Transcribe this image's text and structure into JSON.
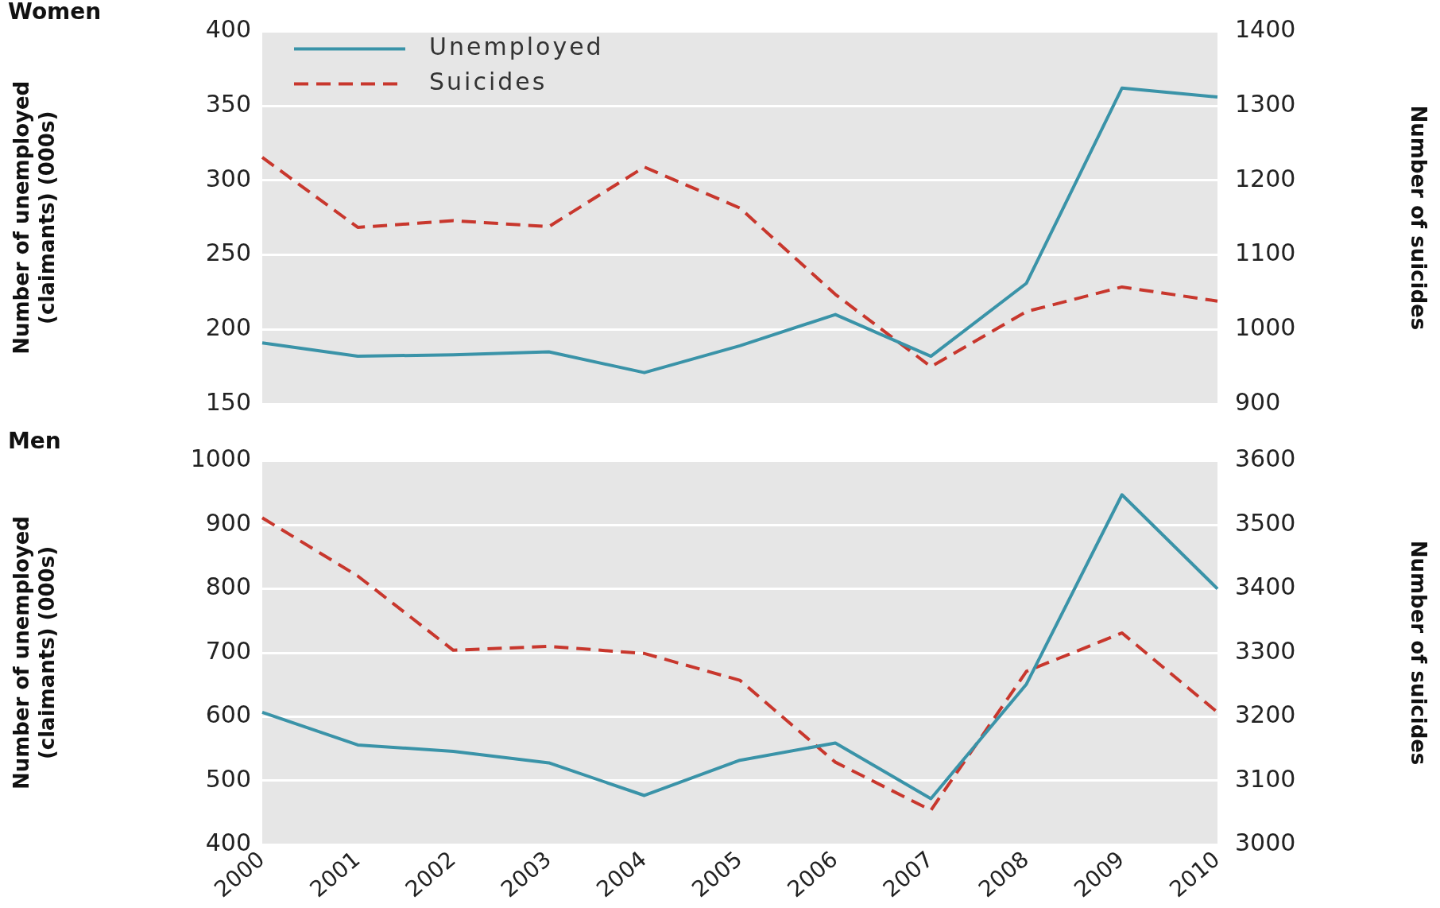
{
  "chart_data": [
    {
      "type": "line",
      "title": "Women",
      "ylabel": "Number of unemployed\n(claimants) (000s)",
      "y2label": "Number of suicides",
      "categories": [
        "2000",
        "2001",
        "2002",
        "2003",
        "2004",
        "2005",
        "2006",
        "2007",
        "2008",
        "2009",
        "2010"
      ],
      "series": [
        {
          "name": "Unemployed",
          "color": "#3a93a8",
          "line_style": "solid",
          "values": [
            191,
            182,
            183,
            185,
            171,
            189,
            210,
            182,
            231,
            362,
            356
          ]
        },
        {
          "name": "Suicides",
          "color": "#c8372d",
          "line_style": "dashed",
          "axis": "y2",
          "values": [
            1231,
            1137,
            1146,
            1138,
            1218,
            1163,
            1047,
            950,
            1024,
            1057,
            1038
          ]
        }
      ],
      "ylim": [
        150,
        400
      ],
      "yticks": [
        150,
        200,
        250,
        300,
        350,
        400
      ],
      "y2lim": [
        900,
        1400
      ],
      "y2ticks": [
        900,
        1000,
        1100,
        1200,
        1300,
        1400
      ],
      "grid": "y",
      "legend": "top left",
      "marker": "none",
      "tick_labels": "y"
    },
    {
      "type": "line",
      "title": "Men",
      "ylabel": "Number of unemployed\n(claimants) (000s)",
      "y2label": "Number of suicides",
      "categories": [
        "2000",
        "2001",
        "2002",
        "2003",
        "2004",
        "2005",
        "2006",
        "2007",
        "2008",
        "2009",
        "2010"
      ],
      "series": [
        {
          "color": "#3a93a8",
          "line_style": "solid",
          "values": [
            607,
            556,
            546,
            528,
            477,
            532,
            559,
            472,
            651,
            947,
            800
          ]
        },
        {
          "color": "#c8372d",
          "line_style": "dashed",
          "axis": "y2",
          "values": [
            3511,
            3420,
            3304,
            3310,
            3299,
            3257,
            3129,
            3054,
            3271,
            3331,
            3207
          ]
        }
      ],
      "ylim": [
        400,
        1000
      ],
      "yticks": [
        400,
        500,
        600,
        700,
        800,
        900,
        1000
      ],
      "y2lim": [
        3000,
        3600
      ],
      "y2ticks": [
        3000,
        3100,
        3200,
        3300,
        3400,
        3500,
        3600
      ],
      "grid": "y",
      "legend": false,
      "marker": "none"
    }
  ]
}
